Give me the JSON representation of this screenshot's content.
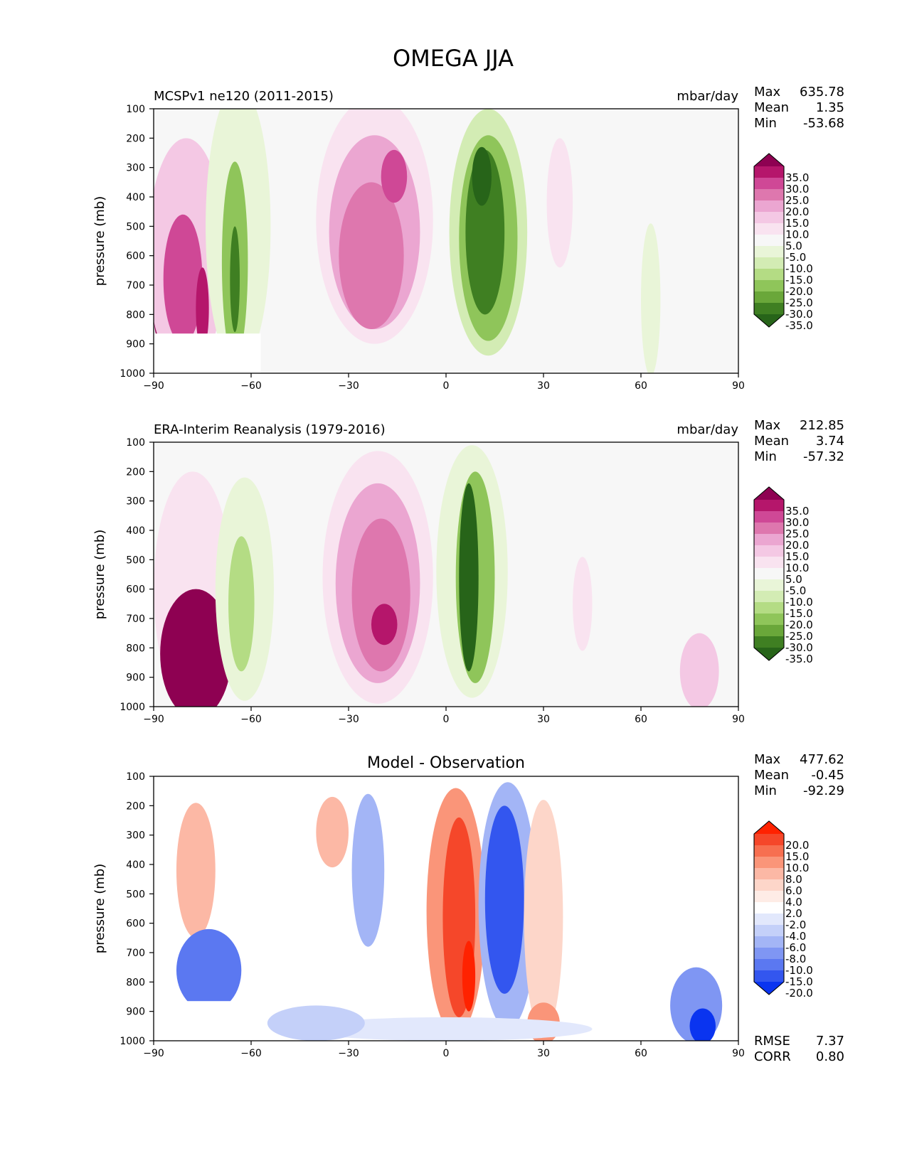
{
  "figure": {
    "title": "OMEGA JJA"
  },
  "chart_data": [
    {
      "type": "heatmap",
      "name": "model",
      "left_title": "MCSPv1 ne120 (2011-2015)",
      "units": "mbar/day",
      "center_title": "",
      "ylabel": "pressure (mb)",
      "xlim": [
        -90,
        90
      ],
      "ylim": [
        1000,
        100
      ],
      "x_ticks": [
        "−90",
        "−60",
        "−30",
        "0",
        "30",
        "60",
        "90"
      ],
      "y_ticks": [
        "100",
        "200",
        "300",
        "400",
        "500",
        "600",
        "700",
        "800",
        "900",
        "1000"
      ],
      "background": "#f7f7f7",
      "stats": [
        {
          "label": "Max",
          "value": "635.78"
        },
        {
          "label": "Mean",
          "value": "1.35"
        },
        {
          "label": "Min",
          "value": "-53.68"
        }
      ],
      "extra_stats": [],
      "colorbar": {
        "labels": [
          "35.0",
          "30.0",
          "25.0",
          "20.0",
          "15.0",
          "10.0",
          "5.0",
          "-5.0",
          "-10.0",
          "-15.0",
          "-20.0",
          "-25.0",
          "-30.0",
          "-35.0"
        ],
        "colors": [
          "#8e0152",
          "#b5166b",
          "#cf4896",
          "#de77ae",
          "#eba6d1",
          "#f4c8e4",
          "#f9e3f0",
          "#f7f7f7",
          "#e9f5d8",
          "#d3ecb4",
          "#b4dc84",
          "#8fc55a",
          "#6aa73a",
          "#3f7f22",
          "#276419"
        ]
      },
      "features": [
        {
          "lon": -86,
          "p": 800,
          "dx": 4,
          "dp": 120,
          "color": "#8e0152"
        },
        {
          "lon": -80,
          "p": 600,
          "dx": 12,
          "dp": 400,
          "color": "#f4c8e4"
        },
        {
          "lon": -81,
          "p": 680,
          "dx": 6,
          "dp": 220,
          "color": "#cf4896"
        },
        {
          "lon": -75,
          "p": 780,
          "dx": 2,
          "dp": 140,
          "color": "#b5166b"
        },
        {
          "lon": -64,
          "p": 500,
          "dx": 10,
          "dp": 480,
          "color": "#e9f5d8"
        },
        {
          "lon": -65,
          "p": 620,
          "dx": 4,
          "dp": 340,
          "color": "#8fc55a"
        },
        {
          "lon": -65,
          "p": 680,
          "dx": 1.5,
          "dp": 180,
          "color": "#3f7f22"
        },
        {
          "lon": -22,
          "p": 480,
          "dx": 18,
          "dp": 420,
          "color": "#f9e3f0"
        },
        {
          "lon": -22,
          "p": 520,
          "dx": 14,
          "dp": 330,
          "color": "#eba6d1"
        },
        {
          "lon": -23,
          "p": 600,
          "dx": 10,
          "dp": 250,
          "color": "#de77ae"
        },
        {
          "lon": -16,
          "p": 330,
          "dx": 4,
          "dp": 90,
          "color": "#cf4896"
        },
        {
          "lon": 13,
          "p": 520,
          "dx": 12,
          "dp": 420,
          "color": "#d3ecb4"
        },
        {
          "lon": 13,
          "p": 540,
          "dx": 9,
          "dp": 350,
          "color": "#8fc55a"
        },
        {
          "lon": 12,
          "p": 520,
          "dx": 6,
          "dp": 280,
          "color": "#3f7f22"
        },
        {
          "lon": 11,
          "p": 330,
          "dx": 3,
          "dp": 100,
          "color": "#276419"
        },
        {
          "lon": 35,
          "p": 420,
          "dx": 4,
          "dp": 220,
          "color": "#f9e3f0"
        },
        {
          "lon": 63,
          "p": 750,
          "dx": 3,
          "dp": 260,
          "color": "#e9f5d8"
        }
      ],
      "mask": {
        "lon_max": -57,
        "p_min": 865
      }
    },
    {
      "type": "heatmap",
      "name": "observation",
      "left_title": "ERA-Interim Reanalysis (1979-2016)",
      "units": "mbar/day",
      "center_title": "",
      "ylabel": "pressure (mb)",
      "xlim": [
        -90,
        90
      ],
      "ylim": [
        1000,
        100
      ],
      "x_ticks": [
        "−90",
        "−60",
        "−30",
        "0",
        "30",
        "60",
        "90"
      ],
      "y_ticks": [
        "100",
        "200",
        "300",
        "400",
        "500",
        "600",
        "700",
        "800",
        "900",
        "1000"
      ],
      "background": "#f7f7f7",
      "stats": [
        {
          "label": "Max",
          "value": "212.85"
        },
        {
          "label": "Mean",
          "value": "3.74"
        },
        {
          "label": "Min",
          "value": "-57.32"
        }
      ],
      "extra_stats": [],
      "colorbar": {
        "labels": [
          "35.0",
          "30.0",
          "25.0",
          "20.0",
          "15.0",
          "10.0",
          "5.0",
          "-5.0",
          "-10.0",
          "-15.0",
          "-20.0",
          "-25.0",
          "-30.0",
          "-35.0"
        ],
        "colors": [
          "#8e0152",
          "#b5166b",
          "#cf4896",
          "#de77ae",
          "#eba6d1",
          "#f4c8e4",
          "#f9e3f0",
          "#f7f7f7",
          "#e9f5d8",
          "#d3ecb4",
          "#b4dc84",
          "#8fc55a",
          "#6aa73a",
          "#3f7f22",
          "#276419"
        ]
      },
      "features": [
        {
          "lon": -78,
          "p": 600,
          "dx": 12,
          "dp": 400,
          "color": "#f9e3f0"
        },
        {
          "lon": -77,
          "p": 820,
          "dx": 11,
          "dp": 220,
          "color": "#8e0152"
        },
        {
          "lon": -62,
          "p": 600,
          "dx": 9,
          "dp": 380,
          "color": "#e9f5d8"
        },
        {
          "lon": -63,
          "p": 650,
          "dx": 4,
          "dp": 230,
          "color": "#b4dc84"
        },
        {
          "lon": -21,
          "p": 560,
          "dx": 17,
          "dp": 430,
          "color": "#f9e3f0"
        },
        {
          "lon": -21,
          "p": 580,
          "dx": 13,
          "dp": 340,
          "color": "#eba6d1"
        },
        {
          "lon": -20,
          "p": 620,
          "dx": 9,
          "dp": 260,
          "color": "#de77ae"
        },
        {
          "lon": -19,
          "p": 720,
          "dx": 4,
          "dp": 70,
          "color": "#b5166b"
        },
        {
          "lon": 8,
          "p": 540,
          "dx": 11,
          "dp": 430,
          "color": "#e9f5d8"
        },
        {
          "lon": 9,
          "p": 560,
          "dx": 6,
          "dp": 360,
          "color": "#8fc55a"
        },
        {
          "lon": 7,
          "p": 560,
          "dx": 3,
          "dp": 320,
          "color": "#276419"
        },
        {
          "lon": 42,
          "p": 650,
          "dx": 3,
          "dp": 160,
          "color": "#f9e3f0"
        },
        {
          "lon": 78,
          "p": 880,
          "dx": 6,
          "dp": 130,
          "color": "#f4c8e4"
        }
      ],
      "mask": null
    },
    {
      "type": "heatmap",
      "name": "difference",
      "left_title": "",
      "units": "",
      "center_title": "Model - Observation",
      "ylabel": "pressure (mb)",
      "xlim": [
        -90,
        90
      ],
      "ylim": [
        1000,
        100
      ],
      "x_ticks": [
        "−90",
        "−60",
        "−30",
        "0",
        "30",
        "60",
        "90"
      ],
      "y_ticks": [
        "100",
        "200",
        "300",
        "400",
        "500",
        "600",
        "700",
        "800",
        "900",
        "1000"
      ],
      "background": "#ffffff",
      "stats": [
        {
          "label": "Max",
          "value": "477.62"
        },
        {
          "label": "Mean",
          "value": "-0.45"
        },
        {
          "label": "Min",
          "value": "-92.29"
        }
      ],
      "extra_stats": [
        {
          "label": "RMSE",
          "value": "7.37"
        },
        {
          "label": "CORR",
          "value": "0.80"
        }
      ],
      "colorbar": {
        "labels": [
          "20.0",
          "15.0",
          "10.0",
          "8.0",
          "6.0",
          "4.0",
          "2.0",
          "-2.0",
          "-4.0",
          "-6.0",
          "-8.0",
          "-10.0",
          "-15.0",
          "-20.0"
        ],
        "colors": [
          "#ff2200",
          "#f5472a",
          "#f76f50",
          "#fa9579",
          "#fcb8a5",
          "#fdd6c9",
          "#feece6",
          "#ffffff",
          "#e2e8fc",
          "#c4d0f9",
          "#a3b5f6",
          "#7f96f3",
          "#5b78f1",
          "#3356ef",
          "#0a34f0"
        ]
      },
      "features": [
        {
          "lon": -77,
          "p": 420,
          "dx": 6,
          "dp": 230,
          "color": "#fcb8a5"
        },
        {
          "lon": -73,
          "p": 760,
          "dx": 10,
          "dp": 140,
          "color": "#5b78f1"
        },
        {
          "lon": -35,
          "p": 290,
          "dx": 5,
          "dp": 120,
          "color": "#fcb8a5"
        },
        {
          "lon": -24,
          "p": 420,
          "dx": 5,
          "dp": 260,
          "color": "#a3b5f6"
        },
        {
          "lon": 3,
          "p": 560,
          "dx": 9,
          "dp": 420,
          "color": "#fa9579"
        },
        {
          "lon": 4,
          "p": 580,
          "dx": 5,
          "dp": 340,
          "color": "#f5472a"
        },
        {
          "lon": 7,
          "p": 780,
          "dx": 2,
          "dp": 120,
          "color": "#ff2200"
        },
        {
          "lon": 19,
          "p": 540,
          "dx": 9,
          "dp": 420,
          "color": "#a3b5f6"
        },
        {
          "lon": 18,
          "p": 520,
          "dx": 6,
          "dp": 320,
          "color": "#3356ef"
        },
        {
          "lon": 30,
          "p": 580,
          "dx": 6,
          "dp": 400,
          "color": "#fdd6c9"
        },
        {
          "lon": 30,
          "p": 940,
          "dx": 5,
          "dp": 70,
          "color": "#fa9579"
        },
        {
          "lon": 0,
          "p": 960,
          "dx": 45,
          "dp": 40,
          "color": "#e2e8fc"
        },
        {
          "lon": -40,
          "p": 940,
          "dx": 15,
          "dp": 60,
          "color": "#c4d0f9"
        },
        {
          "lon": 77,
          "p": 880,
          "dx": 8,
          "dp": 130,
          "color": "#7f96f3"
        },
        {
          "lon": 79,
          "p": 950,
          "dx": 4,
          "dp": 60,
          "color": "#0a34f0"
        }
      ],
      "mask": {
        "lon_max": -65,
        "p_min": 865
      }
    }
  ]
}
